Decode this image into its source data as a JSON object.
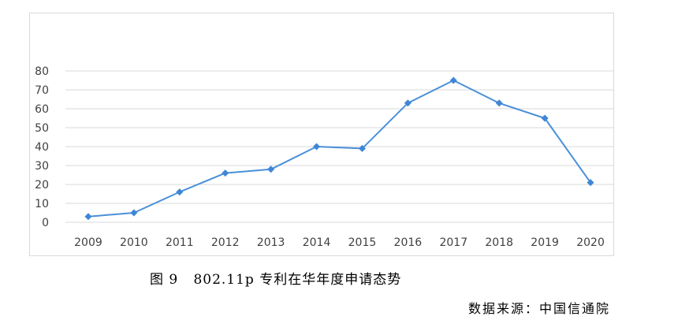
{
  "chart_data": {
    "type": "line",
    "categories": [
      "2009",
      "2010",
      "2011",
      "2012",
      "2013",
      "2014",
      "2015",
      "2016",
      "2017",
      "2018",
      "2019",
      "2020"
    ],
    "series": [
      {
        "values": [
          3,
          5,
          16,
          26,
          28,
          40,
          39,
          63,
          75,
          63,
          55,
          21
        ]
      }
    ],
    "yticks": [
      "0",
      "10",
      "20",
      "30",
      "40",
      "50",
      "60",
      "70",
      "80"
    ],
    "ylim": [
      0,
      80
    ],
    "grid": true,
    "legend": "none",
    "colors": {
      "line": "#4a90d9",
      "marker": "#3f86d6",
      "grid": "#d9d9d9"
    }
  },
  "caption": {
    "figure_no": "图 9",
    "text": "802.11p 专利在华年度申请态势"
  },
  "source": "数据来源：中国信通院"
}
